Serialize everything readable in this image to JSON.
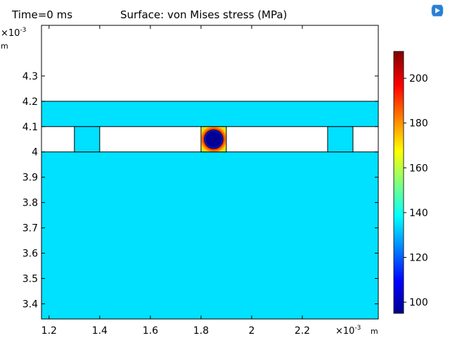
{
  "header": {
    "time_label": "Time=0 ms",
    "plot_title": "Surface: von Mises stress (MPa)"
  },
  "logo": {
    "icon": "comsol-logo-icon"
  },
  "axes": {
    "x": {
      "ticks": [
        1.2,
        1.4,
        1.6,
        1.8,
        2,
        2.2
      ],
      "tick_labels": [
        "1.2",
        "1.4",
        "1.6",
        "1.8",
        "2",
        "2.2"
      ],
      "range": [
        1.17,
        2.5
      ],
      "multiplier_base": "×10",
      "multiplier_exp": "-3",
      "unit": "m"
    },
    "y": {
      "ticks": [
        3.4,
        3.5,
        3.6,
        3.7,
        3.8,
        3.9,
        4,
        4.1,
        4.2,
        4.3
      ],
      "tick_labels": [
        "3.4",
        "3.5",
        "3.6",
        "3.7",
        "3.8",
        "3.9",
        "4",
        "4.1",
        "4.2",
        "4.3"
      ],
      "range": [
        3.34,
        4.5
      ],
      "multiplier_base": "×10",
      "multiplier_exp": "-3",
      "unit": "m"
    }
  },
  "geometry": {
    "substrate": {
      "x": [
        1.17,
        2.5
      ],
      "y": [
        3.34,
        4.0
      ],
      "stress": 136
    },
    "top_plate": {
      "x": [
        1.17,
        2.5
      ],
      "y": [
        4.1,
        4.2
      ],
      "stress": 136
    },
    "pillars": [
      {
        "x": [
          1.3,
          1.4
        ],
        "y": [
          4.0,
          4.1
        ],
        "stress": 136
      },
      {
        "x": [
          2.3,
          2.4
        ],
        "y": [
          4.0,
          4.1
        ],
        "stress": 136
      }
    ],
    "center_block": {
      "x": [
        1.8,
        1.9
      ],
      "y": [
        4.0,
        4.1
      ],
      "hole_center": [
        1.85,
        4.05
      ],
      "hole_radius": 0.037
    }
  },
  "colorbar": {
    "ticks": [
      100,
      120,
      140,
      160,
      180,
      200
    ],
    "tick_labels": [
      "100",
      "120",
      "140",
      "160",
      "180",
      "200"
    ],
    "range": [
      95,
      212
    ],
    "colormap": "rainbow",
    "base_color": "#00E0FF",
    "stops": [
      "#00008F",
      "#0000FF",
      "#00FFFF",
      "#FFFF00",
      "#FF0000",
      "#800000"
    ]
  }
}
